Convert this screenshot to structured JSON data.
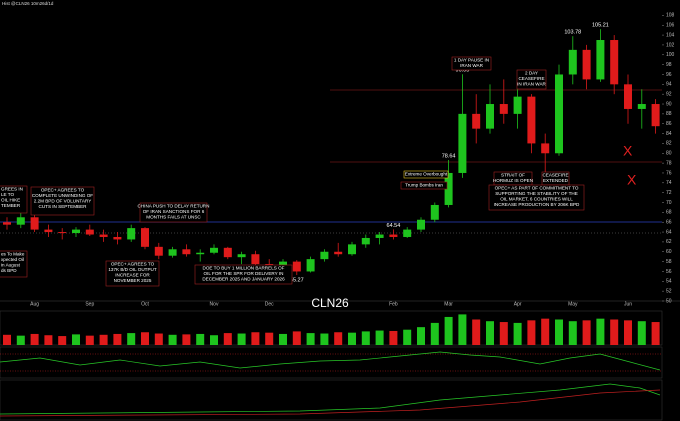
{
  "header": "Hist @CLN26 10m26d/1d",
  "chart_data": {
    "type": "candlestick",
    "title": "CLN26",
    "categories": [
      null,
      null,
      "Aug",
      null,
      null,
      null,
      "Sep",
      null,
      null,
      null,
      "Oct",
      null,
      null,
      null,
      null,
      "Nov",
      null,
      null,
      null,
      "Dec",
      null,
      null,
      null,
      null,
      null,
      null,
      null,
      null,
      "Feb",
      null,
      null,
      null,
      "Mar",
      null,
      null,
      null,
      null,
      "Apr",
      null,
      null,
      null,
      "May",
      null,
      null,
      null,
      "Jun",
      null,
      null
    ],
    "open": [
      66,
      65.5,
      67,
      64.5,
      64,
      63.8,
      64.5,
      63.5,
      63,
      62.5,
      64.8,
      61,
      59.2,
      60.5,
      59.5,
      59.8,
      60.8,
      58.9,
      59.5,
      57.5,
      56.5,
      58,
      56,
      58.5,
      60,
      59.5,
      61.5,
      62.8,
      63.5,
      63,
      64.5,
      66.5,
      69.5,
      76,
      88,
      85,
      90,
      88,
      91.5,
      82,
      80,
      96,
      101,
      95,
      103,
      94,
      89,
      90
    ],
    "high": [
      67,
      68,
      67.5,
      65.5,
      64.8,
      65,
      65.5,
      64.5,
      64,
      65.5,
      65,
      61.8,
      61,
      61.5,
      60.5,
      61.5,
      61,
      60,
      60.2,
      58.5,
      58.5,
      58.3,
      59,
      60.5,
      61.8,
      62,
      63.5,
      64,
      64.54,
      65,
      67,
      70,
      78.64,
      96.05,
      92,
      94,
      95,
      93,
      92,
      84,
      98,
      103.78,
      102,
      105.21,
      104,
      96,
      93,
      91
    ],
    "low": [
      64.5,
      64.8,
      64,
      63,
      62.5,
      63,
      63.2,
      62,
      61.5,
      62,
      60.5,
      58.5,
      58.8,
      59,
      58,
      59.5,
      58.5,
      57.5,
      56.8,
      56,
      56.2,
      55.27,
      55.8,
      58,
      59,
      59.2,
      60.8,
      61.5,
      62.5,
      62.8,
      64,
      66,
      69,
      75,
      82,
      84,
      86,
      85,
      80,
      70,
      79.5,
      94,
      93,
      94.5,
      92,
      86,
      85,
      84
    ],
    "close": [
      65.5,
      67,
      64.5,
      64,
      63.8,
      64.5,
      63.5,
      63,
      62.5,
      64.8,
      61,
      59.2,
      60.5,
      59.5,
      59.8,
      60.8,
      58.9,
      59.5,
      57.5,
      56.5,
      58,
      56,
      58.5,
      60,
      59.5,
      61.5,
      62.8,
      63.5,
      63,
      64.5,
      66.5,
      69.5,
      76,
      88,
      85,
      90,
      88,
      91.5,
      82,
      80,
      96,
      101,
      95,
      103,
      94,
      89,
      90,
      85.5
    ],
    "up_color": "#1ec41e",
    "down_color": "#e01b1b",
    "ylim": [
      50,
      109.5
    ],
    "yticks": [
      50,
      52,
      54,
      56,
      58,
      60,
      62,
      64,
      66,
      68,
      70,
      72,
      74,
      76,
      78,
      80,
      82,
      84,
      86,
      88,
      90,
      92,
      94,
      96,
      98,
      100,
      102,
      104,
      106,
      108
    ],
    "grid": false,
    "volume": [
      120,
      110,
      130,
      115,
      105,
      125,
      110,
      120,
      130,
      140,
      150,
      135,
      120,
      125,
      130,
      115,
      140,
      135,
      150,
      145,
      130,
      160,
      140,
      135,
      150,
      145,
      160,
      170,
      165,
      180,
      210,
      260,
      330,
      360,
      300,
      280,
      270,
      260,
      290,
      310,
      300,
      280,
      290,
      310,
      300,
      290,
      280,
      270
    ],
    "volume_ylim": [
      0,
      400
    ],
    "annotations": [
      [
        "GREES IN",
        "LE TO",
        "OIL HIKE",
        "TEMBER"
      ],
      [
        "OPEC+ AGREES TO",
        "COMPLETE UNWINDING OF",
        "2.2M BPD OF VOLUNTARY",
        "CUTS IN SEPTEMBER"
      ],
      [
        "es To Make",
        "xpected Oil",
        "in August",
        "ds BPD"
      ],
      [
        "OPEC+ AGREES TO",
        "137K B/D OIL OUTPUT",
        "INCREASE FOR",
        "NOVEMBER 2025"
      ],
      [
        "CHINA PUSH TO DELAY RETURN",
        "OF IRAN SANCTIONS FOR 6",
        "MONTHS FAILS AT UNSC"
      ],
      [
        "DOE TO BUY 1 MILLION BARRELS OF",
        "OIL FOR THE SPR FOR DELIVERY IN",
        "DECEMBER 2025 AND JANUARY 2026"
      ],
      [
        "1 DAY PAUSE IN",
        "IRAN WAR"
      ],
      [
        "2 DAY",
        "CEASEFIRE",
        "IN IRAN WAR"
      ],
      [
        "Extreme Overbought"
      ],
      [
        "Trump Bombs Iran"
      ],
      [
        "STRAIT OF",
        "HORMUZ IS OPEN"
      ],
      [
        "CEASEFIRE",
        "EXTENDED"
      ],
      [
        "OPEC+ AS PART OF COMMITMENT TO",
        "SUPPORTING THE STABILITY OF THE",
        "OIL MARKET, 6 COUNTRIES WILL",
        "INCREASE PRODUCTION BY 206K BPD"
      ]
    ]
  }
}
